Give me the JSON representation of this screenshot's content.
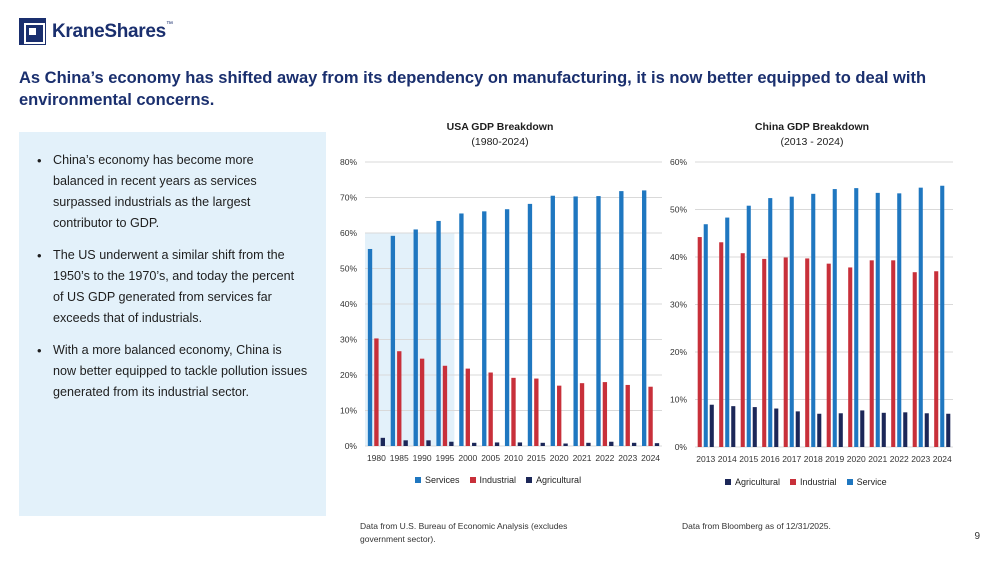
{
  "brand": {
    "name_part1": "Krane",
    "name_part2": "Shares",
    "trademark": "™",
    "color": "#1a2f6e"
  },
  "headline": "As China’s economy has shifted away from its dependency on manufacturing, it is now better equipped to deal with environmental concerns.",
  "bullets": [
    "China’s economy has become more balanced in recent years as services surpassed industrials as the largest contributor to GDP.",
    "The US underwent a similar shift from the 1950’s to the 1970’s, and today the percent of US GDP generated from services far exceeds that of industrials.",
    "With a more balanced economy, China is now better equipped to tackle pollution issues generated from its industrial sector."
  ],
  "colors": {
    "services": "#1f77c0",
    "industrial": "#c8303a",
    "agricultural": "#1c2758",
    "grid": "#d9d9d9",
    "highlight": "#e3f1fa"
  },
  "chart_data": [
    {
      "type": "bar",
      "title": "USA GDP Breakdown",
      "subtitle": "(1980-2024)",
      "categories": [
        "1980",
        "1985",
        "1990",
        "1995",
        "2000",
        "2005",
        "2010",
        "2015",
        "2020",
        "2021",
        "2022",
        "2023",
        "2024"
      ],
      "series": [
        {
          "name": "Services",
          "values": [
            55.5,
            59.2,
            61.0,
            63.4,
            65.5,
            66.1,
            66.7,
            68.2,
            70.5,
            70.3,
            70.4,
            71.8,
            72.0
          ]
        },
        {
          "name": "Industrial",
          "values": [
            30.3,
            26.7,
            24.6,
            22.6,
            21.8,
            20.7,
            19.2,
            19.0,
            17.0,
            17.7,
            18.0,
            17.2,
            16.7
          ]
        },
        {
          "name": "Agricultural",
          "values": [
            2.3,
            1.6,
            1.6,
            1.2,
            0.9,
            1.0,
            1.0,
            0.9,
            0.7,
            0.9,
            1.2,
            0.9,
            0.8
          ]
        }
      ],
      "ylim": [
        0,
        80
      ],
      "yticks": [
        0,
        10,
        20,
        30,
        40,
        50,
        60,
        70,
        80
      ],
      "ytick_labels": [
        "0%",
        "10%",
        "20%",
        "30%",
        "40%",
        "50%",
        "60%",
        "70%",
        "80%"
      ],
      "highlight_range": [
        "1980",
        "1995"
      ],
      "legend_order": [
        "Services",
        "Industrial",
        "Agricultural"
      ],
      "source": "Data from U.S. Bureau of Economic Analysis (excludes government sector)."
    },
    {
      "type": "bar",
      "title": "China GDP Breakdown",
      "subtitle": "(2013 - 2024)",
      "categories": [
        "2013",
        "2014",
        "2015",
        "2016",
        "2017",
        "2018",
        "2019",
        "2020",
        "2021",
        "2022",
        "2023",
        "2024"
      ],
      "series": [
        {
          "name": "Industrial",
          "values": [
            44.2,
            43.1,
            40.8,
            39.6,
            39.9,
            39.7,
            38.6,
            37.8,
            39.3,
            39.3,
            36.8,
            37.0
          ]
        },
        {
          "name": "Service",
          "values": [
            46.9,
            48.3,
            50.8,
            52.4,
            52.7,
            53.3,
            54.3,
            54.5,
            53.5,
            53.4,
            54.6,
            55.0
          ]
        },
        {
          "name": "Agricultural",
          "values": [
            8.9,
            8.6,
            8.4,
            8.1,
            7.5,
            7.0,
            7.1,
            7.7,
            7.2,
            7.3,
            7.1,
            7.0
          ]
        }
      ],
      "ylim": [
        0,
        60
      ],
      "yticks": [
        0,
        10,
        20,
        30,
        40,
        50,
        60
      ],
      "ytick_labels": [
        "0%",
        "10%",
        "20%",
        "30%",
        "40%",
        "50%",
        "60%"
      ],
      "legend_order": [
        "Agricultural",
        "Industrial",
        "Service"
      ],
      "source": "Data from Bloomberg as of 12/31/2025."
    }
  ],
  "page_number": "9"
}
